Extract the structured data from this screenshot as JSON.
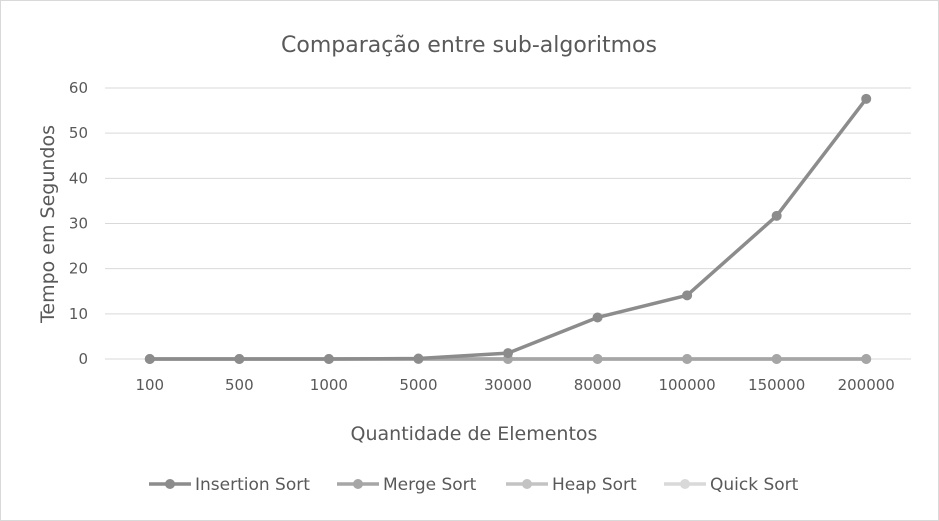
{
  "chart_data": {
    "type": "line",
    "title": "Comparação entre sub-algoritmos",
    "xlabel": "Quantidade de Elementos",
    "ylabel": "Tempo em Segundos",
    "categories": [
      "100",
      "500",
      "1000",
      "5000",
      "30000",
      "80000",
      "100000",
      "150000",
      "200000"
    ],
    "ylim": [
      0,
      60
    ],
    "yticks": [
      0,
      10,
      20,
      30,
      40,
      50,
      60
    ],
    "grid": true,
    "legend_position": "bottom",
    "series": [
      {
        "name": "Insertion Sort",
        "color": "#8c8c8c",
        "values": [
          0,
          0,
          0,
          0.1,
          1.3,
          9.2,
          14.1,
          31.7,
          57.6
        ]
      },
      {
        "name": "Merge Sort",
        "color": "#a6a6a6",
        "values": [
          0,
          0,
          0,
          0,
          0,
          0,
          0,
          0,
          0
        ]
      },
      {
        "name": "Heap Sort",
        "color": "#c3c3c3",
        "values": [
          0,
          0,
          0,
          0,
          0,
          0,
          0,
          0,
          0
        ]
      },
      {
        "name": "Quick Sort",
        "color": "#d9d9d9",
        "values": [
          0,
          0,
          0,
          0,
          0,
          0,
          0,
          0,
          0
        ]
      }
    ]
  }
}
